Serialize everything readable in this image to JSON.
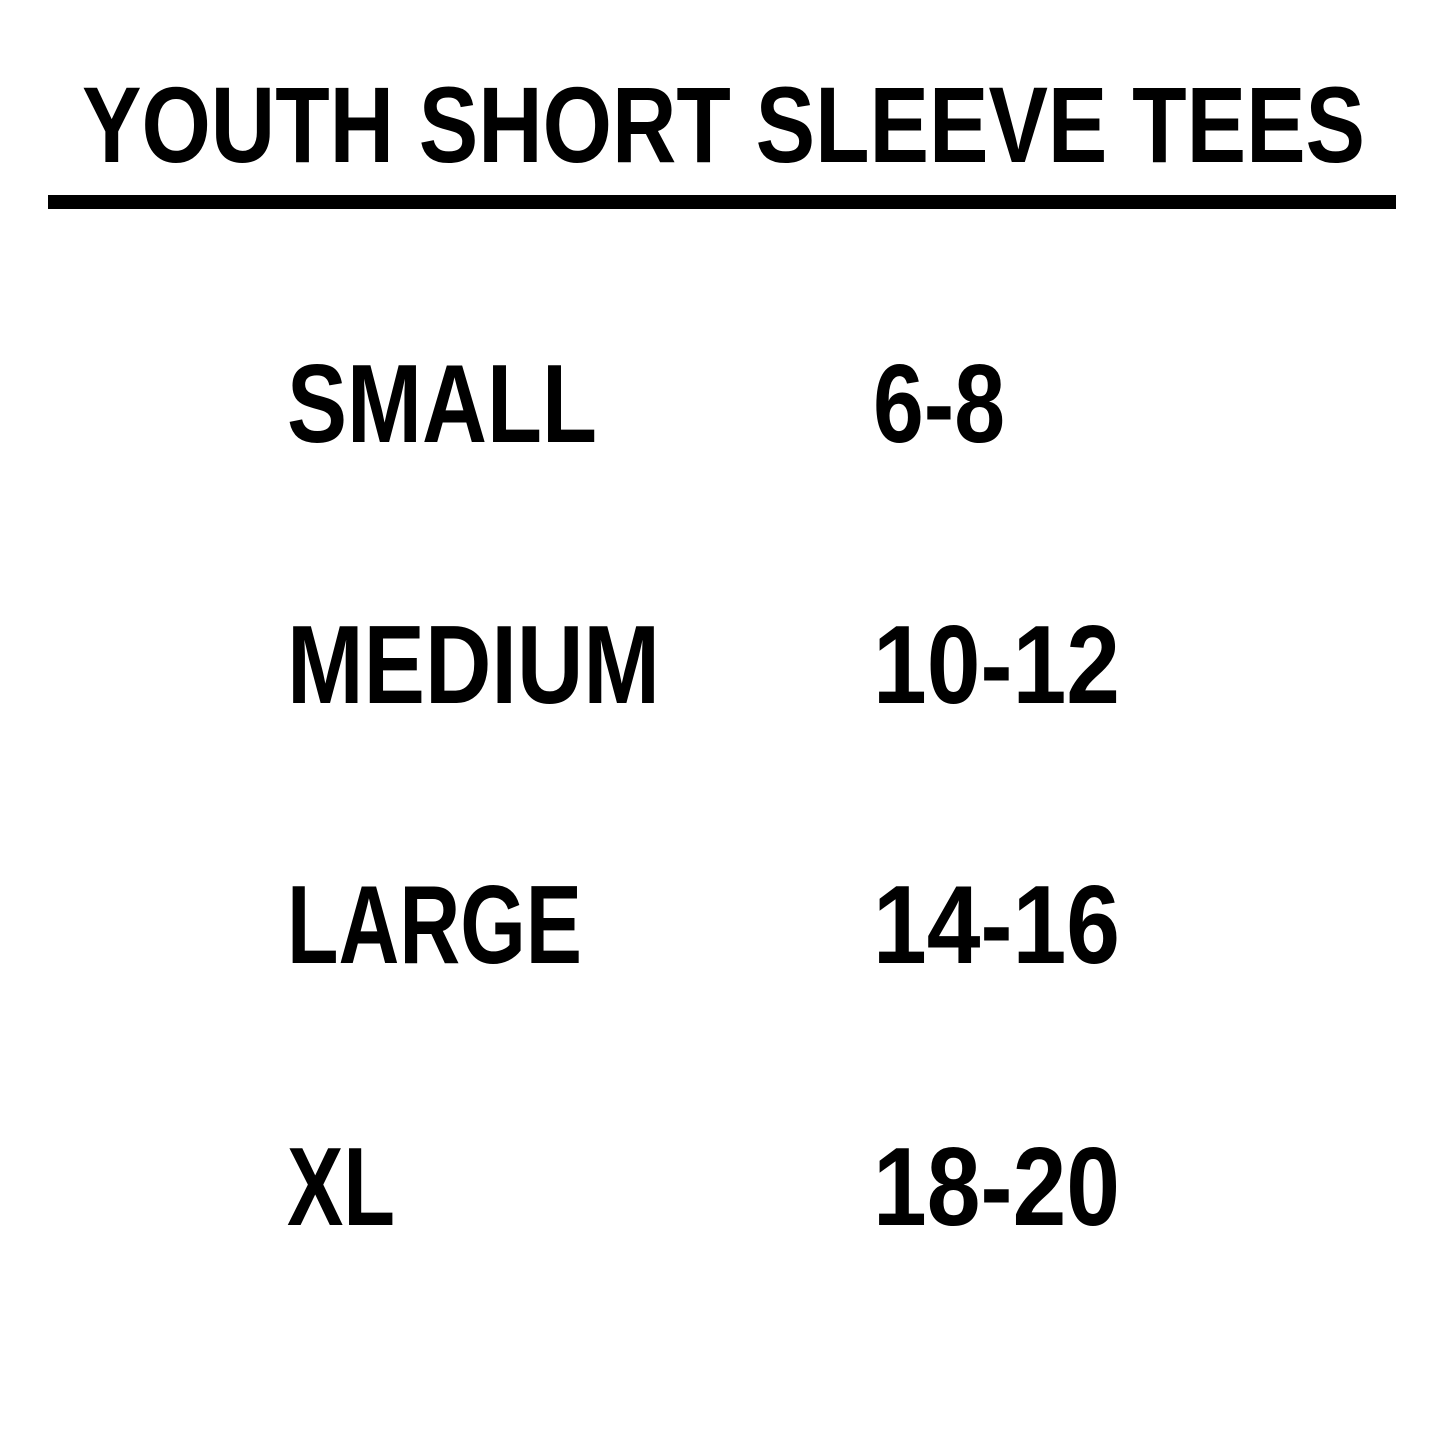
{
  "title": "YOUTH SHORT SLEEVE TEES",
  "colors": {
    "text": "#000000",
    "background": "#ffffff",
    "rule": "#000000"
  },
  "sizes": [
    {
      "size": "SMALL",
      "ages": "6-8"
    },
    {
      "size": "MEDIUM",
      "ages": "10-12"
    },
    {
      "size": "LARGE",
      "ages": "14-16"
    },
    {
      "size": "XL",
      "ages": "18-20"
    }
  ]
}
